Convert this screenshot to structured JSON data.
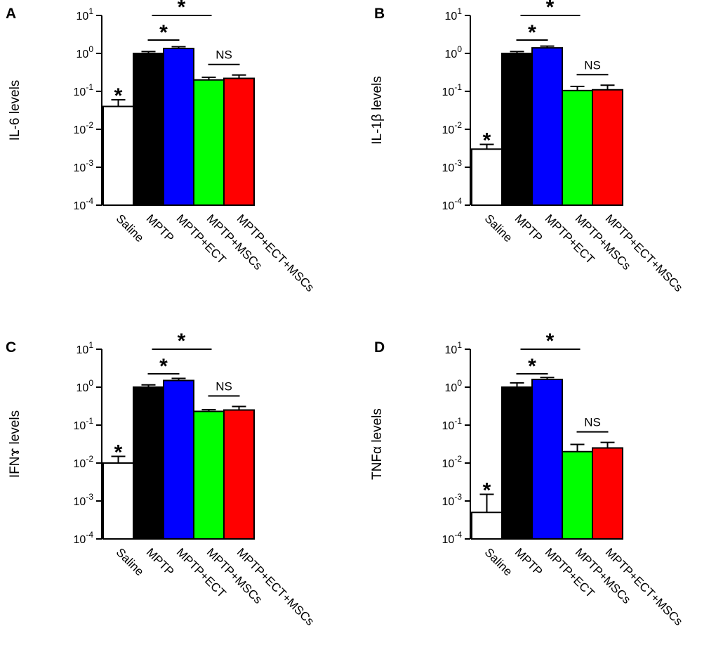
{
  "chart_data": [
    {
      "panel": "A",
      "type": "bar",
      "ylabel": "IL-6 levels",
      "yscale": "log",
      "ylim": [
        0.0001,
        10
      ],
      "yticks": [
        "-4",
        "-3",
        "-2",
        "-1",
        "0",
        "1"
      ],
      "categories": [
        "Saline",
        "MPTP",
        "MPTP+ECT",
        "MPTP+MSCs",
        "MPTP+ECT+MSCs"
      ],
      "values": [
        0.04,
        1.0,
        1.35,
        0.2,
        0.22
      ],
      "errors": [
        0.06,
        1.12,
        1.5,
        0.235,
        0.27
      ],
      "colors": [
        "#ffffff",
        "#000000",
        "#0000ff",
        "#00ff00",
        "#ff0000"
      ],
      "annotations": [
        {
          "type": "star",
          "on": 0
        },
        {
          "type": "bracket",
          "from": 1,
          "to": 2,
          "label": "*"
        },
        {
          "type": "bracket",
          "from": 1,
          "to": 3,
          "label": "*"
        },
        {
          "type": "bracket",
          "from": 3,
          "to": 4,
          "label": "NS"
        }
      ]
    },
    {
      "panel": "B",
      "type": "bar",
      "ylabel": "IL-1β levels",
      "yscale": "log",
      "ylim": [
        0.0001,
        10
      ],
      "yticks": [
        "-4",
        "-3",
        "-2",
        "-1",
        "0",
        "1"
      ],
      "categories": [
        "Saline",
        "MPTP",
        "MPTP+ECT",
        "MPTP+MSCs",
        "MPTP+ECT+MSCs"
      ],
      "values": [
        0.003,
        1.0,
        1.4,
        0.105,
        0.11
      ],
      "errors": [
        0.004,
        1.12,
        1.56,
        0.135,
        0.145
      ],
      "colors": [
        "#ffffff",
        "#000000",
        "#0000ff",
        "#00ff00",
        "#ff0000"
      ],
      "annotations": [
        {
          "type": "star",
          "on": 0
        },
        {
          "type": "bracket",
          "from": 1,
          "to": 2,
          "label": "*"
        },
        {
          "type": "bracket",
          "from": 1,
          "to": 3,
          "label": "*"
        },
        {
          "type": "bracket",
          "from": 3,
          "to": 4,
          "label": "NS"
        }
      ]
    },
    {
      "panel": "C",
      "type": "bar",
      "ylabel": "IFNɤ levels",
      "yscale": "log",
      "ylim": [
        0.0001,
        10
      ],
      "yticks": [
        "-4",
        "-3",
        "-2",
        "-1",
        "0",
        "1"
      ],
      "categories": [
        "Saline",
        "MPTP",
        "MPTP+ECT",
        "MPTP+MSCs",
        "MPTP+ECT+MSCs"
      ],
      "values": [
        0.01,
        1.0,
        1.5,
        0.23,
        0.25
      ],
      "errors": [
        0.015,
        1.15,
        1.7,
        0.255,
        0.31
      ],
      "colors": [
        "#ffffff",
        "#000000",
        "#0000ff",
        "#00ff00",
        "#ff0000"
      ],
      "annotations": [
        {
          "type": "star",
          "on": 0
        },
        {
          "type": "bracket",
          "from": 1,
          "to": 2,
          "label": "*"
        },
        {
          "type": "bracket",
          "from": 1,
          "to": 3,
          "label": "*"
        },
        {
          "type": "bracket",
          "from": 3,
          "to": 4,
          "label": "NS"
        }
      ]
    },
    {
      "panel": "D",
      "type": "bar",
      "ylabel": "TNFα levels",
      "yscale": "log",
      "ylim": [
        0.0001,
        10
      ],
      "yticks": [
        "-4",
        "-3",
        "-2",
        "-1",
        "0",
        "1"
      ],
      "categories": [
        "Saline",
        "MPTP",
        "MPTP+ECT",
        "MPTP+MSCs",
        "MPTP+ECT+MSCs"
      ],
      "values": [
        0.0005,
        1.0,
        1.6,
        0.02,
        0.025
      ],
      "errors": [
        0.0015,
        1.3,
        1.8,
        0.031,
        0.035
      ],
      "colors": [
        "#ffffff",
        "#000000",
        "#0000ff",
        "#00ff00",
        "#ff0000"
      ],
      "annotations": [
        {
          "type": "star",
          "on": 0
        },
        {
          "type": "bracket",
          "from": 1,
          "to": 2,
          "label": "*"
        },
        {
          "type": "bracket",
          "from": 1,
          "to": 3,
          "label": "*"
        },
        {
          "type": "bracket",
          "from": 3,
          "to": 4,
          "label": "NS"
        }
      ]
    }
  ]
}
